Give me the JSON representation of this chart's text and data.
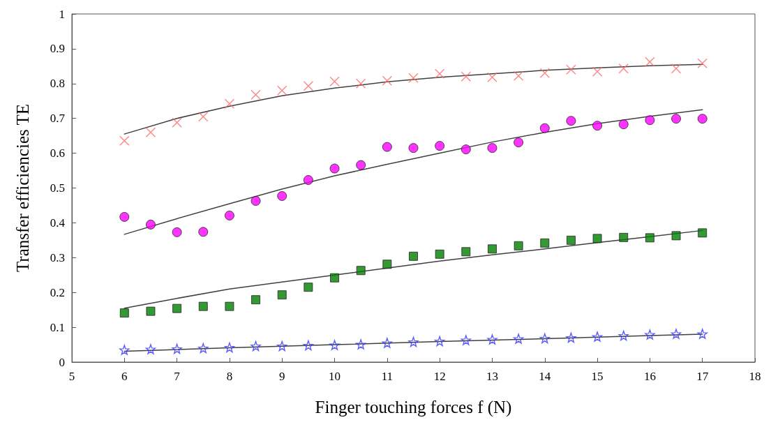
{
  "chart_data": {
    "type": "scatter",
    "xlabel": "Finger touching forces f (N)",
    "ylabel": "Transfer efficiencies TE",
    "xlim": [
      5,
      18
    ],
    "xticks": [
      5,
      6,
      7,
      8,
      9,
      10,
      11,
      12,
      13,
      14,
      15,
      16,
      17,
      18
    ],
    "ylim": [
      0,
      1
    ],
    "yticks": [
      0,
      0.1,
      0.2,
      0.3,
      0.4,
      0.5,
      0.6,
      0.7,
      0.8,
      0.9,
      1
    ],
    "grid": false,
    "x": [
      6,
      6.5,
      7,
      7.5,
      8,
      8.5,
      9,
      9.5,
      10,
      10.5,
      11,
      11.5,
      12,
      12.5,
      13,
      13.5,
      14,
      14.5,
      15,
      15.5,
      16,
      16.5,
      17
    ],
    "series": [
      {
        "color": "#ff6666",
        "marker": "cross",
        "values": [
          0.636,
          0.66,
          0.688,
          0.705,
          0.742,
          0.768,
          0.78,
          0.793,
          0.806,
          0.8,
          0.808,
          0.816,
          0.828,
          0.82,
          0.818,
          0.822,
          0.83,
          0.84,
          0.834,
          0.843,
          0.862,
          0.843,
          0.858
        ]
      },
      {
        "color": "#ff00ff",
        "marker": "circle",
        "values": [
          0.417,
          0.395,
          0.373,
          0.374,
          0.421,
          0.463,
          0.477,
          0.523,
          0.556,
          0.566,
          0.618,
          0.615,
          0.621,
          0.611,
          0.615,
          0.631,
          0.672,
          0.693,
          0.679,
          0.683,
          0.695,
          0.699,
          0.699
        ]
      },
      {
        "color": "#007f00",
        "marker": "square",
        "values": [
          0.141,
          0.146,
          0.154,
          0.16,
          0.16,
          0.179,
          0.193,
          0.215,
          0.242,
          0.263,
          0.281,
          0.304,
          0.31,
          0.317,
          0.325,
          0.334,
          0.342,
          0.35,
          0.355,
          0.358,
          0.357,
          0.363,
          0.371
        ]
      },
      {
        "color": "#3333ff",
        "marker": "star",
        "values": [
          0.035,
          0.037,
          0.038,
          0.04,
          0.042,
          0.046,
          0.046,
          0.048,
          0.049,
          0.051,
          0.055,
          0.058,
          0.06,
          0.063,
          0.065,
          0.067,
          0.068,
          0.07,
          0.073,
          0.076,
          0.079,
          0.081,
          0.081
        ]
      },
      {
        "type": "line",
        "color": "#404040",
        "marker": "none",
        "x": [
          6,
          7,
          8,
          9,
          10,
          11,
          12,
          13,
          14,
          15,
          16,
          17
        ],
        "values": [
          0.655,
          0.7,
          0.735,
          0.765,
          0.787,
          0.805,
          0.818,
          0.828,
          0.838,
          0.845,
          0.851,
          0.855
        ]
      },
      {
        "type": "line",
        "color": "#404040",
        "marker": "none",
        "x": [
          6,
          7,
          8,
          9,
          10,
          11,
          12,
          13,
          14,
          15,
          16,
          17
        ],
        "values": [
          0.367,
          0.412,
          0.455,
          0.497,
          0.535,
          0.568,
          0.6,
          0.632,
          0.66,
          0.685,
          0.706,
          0.725
        ]
      },
      {
        "type": "line",
        "color": "#404040",
        "marker": "none",
        "x": [
          6,
          7,
          8,
          9,
          10,
          11,
          12,
          13,
          14,
          15,
          16,
          17
        ],
        "values": [
          0.155,
          0.183,
          0.21,
          0.23,
          0.25,
          0.27,
          0.29,
          0.308,
          0.325,
          0.343,
          0.36,
          0.378
        ]
      },
      {
        "type": "line",
        "color": "#404040",
        "marker": "none",
        "x": [
          6,
          8,
          10,
          12,
          14,
          16,
          17
        ],
        "values": [
          0.031,
          0.041,
          0.05,
          0.059,
          0.067,
          0.076,
          0.08
        ]
      }
    ]
  }
}
